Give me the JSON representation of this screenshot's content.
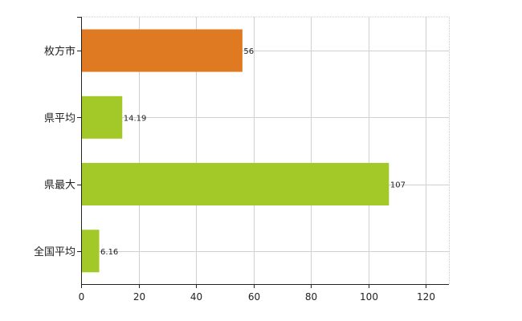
{
  "chart_data": {
    "type": "bar",
    "orientation": "horizontal",
    "categories": [
      "枚方市",
      "県平均",
      "県最大",
      "全国平均"
    ],
    "values": [
      56,
      14.19,
      107,
      6.16
    ],
    "data_labels": [
      "56",
      "14.19",
      "107",
      "6.16"
    ],
    "bar_colors": [
      "#e07a22",
      "#a2c928",
      "#a2c928",
      "#a2c928"
    ],
    "xlim": [
      0,
      128
    ],
    "x_ticks": [
      0,
      20,
      40,
      60,
      80,
      100,
      120
    ],
    "grid": true,
    "title": "",
    "xlabel": "",
    "ylabel": ""
  }
}
